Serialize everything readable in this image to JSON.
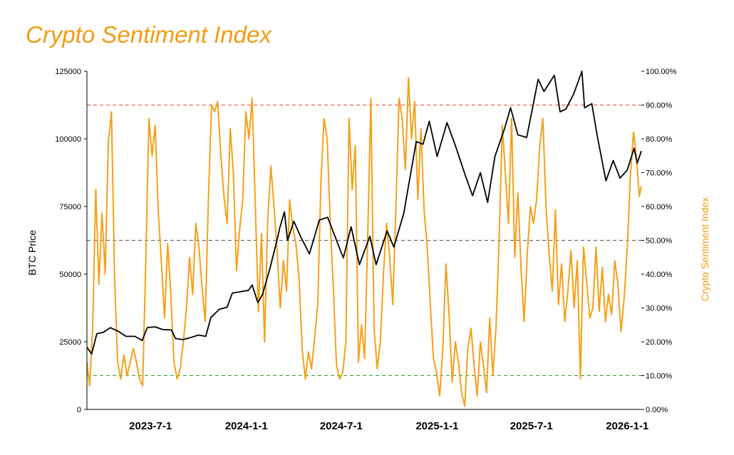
{
  "colors": {
    "title": "#f39c12",
    "price_line": "#000000",
    "sentiment_line": "#f5a018",
    "right_axis_label": "#f39c12",
    "threshold_high": "#e74c3c",
    "threshold_mid": "#555555",
    "threshold_low": "#2ca02c"
  },
  "chart_data": {
    "type": "line",
    "title": "Crypto Sentiment Index",
    "ylabel_left": "BTC Price",
    "ylabel_right": "Crypto Sentiment Index",
    "x_range": [
      "2023-03-01",
      "2026-01-28"
    ],
    "x_ticks": [
      {
        "date": "2023-07-01",
        "label": "2023-7-1"
      },
      {
        "date": "2024-01-01",
        "label": "2024-1-1"
      },
      {
        "date": "2024-07-01",
        "label": "2024-7-1"
      },
      {
        "date": "2025-01-01",
        "label": "2025-1-1"
      },
      {
        "date": "2025-07-01",
        "label": "2025-7-1"
      },
      {
        "date": "2026-01-01",
        "label": "2026-1-1"
      }
    ],
    "ylim_left": [
      0,
      125000
    ],
    "y_ticks_left": [
      "0",
      "25000",
      "50000",
      "75000",
      "100000",
      "125000"
    ],
    "ylim_right": [
      0,
      100
    ],
    "y_ticks_right": [
      "0.00%",
      "10.00%",
      "20.00%",
      "30.00%",
      "40.00%",
      "50.00%",
      "60.00%",
      "70.00%",
      "80.00%",
      "90.00%",
      "100.00%"
    ],
    "thresholds_right_percent": [
      90,
      50,
      10
    ],
    "grid": false,
    "series": [
      {
        "axis": "left",
        "points": [
          [
            "2023-03-01",
            23000
          ],
          [
            "2023-03-10",
            20500
          ],
          [
            "2023-03-20",
            28000
          ],
          [
            "2023-04-01",
            28500
          ],
          [
            "2023-04-15",
            30200
          ],
          [
            "2023-05-01",
            28800
          ],
          [
            "2023-05-15",
            27000
          ],
          [
            "2023-06-01",
            27000
          ],
          [
            "2023-06-15",
            25500
          ],
          [
            "2023-06-25",
            30300
          ],
          [
            "2023-07-10",
            30500
          ],
          [
            "2023-07-25",
            29500
          ],
          [
            "2023-08-10",
            29400
          ],
          [
            "2023-08-18",
            26200
          ],
          [
            "2023-09-01",
            25800
          ],
          [
            "2023-09-15",
            26500
          ],
          [
            "2023-10-01",
            27500
          ],
          [
            "2023-10-15",
            27000
          ],
          [
            "2023-10-25",
            34000
          ],
          [
            "2023-11-10",
            37000
          ],
          [
            "2023-11-25",
            37800
          ],
          [
            "2023-12-05",
            43000
          ],
          [
            "2023-12-20",
            43500
          ],
          [
            "2024-01-05",
            44000
          ],
          [
            "2024-01-12",
            46000
          ],
          [
            "2024-01-23",
            39500
          ],
          [
            "2024-02-01",
            42500
          ],
          [
            "2024-02-15",
            52000
          ],
          [
            "2024-02-28",
            62000
          ],
          [
            "2024-03-05",
            67000
          ],
          [
            "2024-03-14",
            73000
          ],
          [
            "2024-03-20",
            62500
          ],
          [
            "2024-04-01",
            69500
          ],
          [
            "2024-04-15",
            63500
          ],
          [
            "2024-05-01",
            57500
          ],
          [
            "2024-05-20",
            70000
          ],
          [
            "2024-06-05",
            71000
          ],
          [
            "2024-06-25",
            61000
          ],
          [
            "2024-07-05",
            56000
          ],
          [
            "2024-07-20",
            67500
          ],
          [
            "2024-08-05",
            53500
          ],
          [
            "2024-08-25",
            64000
          ],
          [
            "2024-09-06",
            53500
          ],
          [
            "2024-09-27",
            66000
          ],
          [
            "2024-10-10",
            60000
          ],
          [
            "2024-10-29",
            72500
          ],
          [
            "2024-11-12",
            88000
          ],
          [
            "2024-11-22",
            99000
          ],
          [
            "2024-12-05",
            98000
          ],
          [
            "2024-12-17",
            106500
          ],
          [
            "2025-01-01",
            93500
          ],
          [
            "2025-01-20",
            106000
          ],
          [
            "2025-02-05",
            97500
          ],
          [
            "2025-02-25",
            86000
          ],
          [
            "2025-03-10",
            79000
          ],
          [
            "2025-03-25",
            87500
          ],
          [
            "2025-04-08",
            76500
          ],
          [
            "2025-04-22",
            93500
          ],
          [
            "2025-05-10",
            103500
          ],
          [
            "2025-05-22",
            111500
          ],
          [
            "2025-06-05",
            101500
          ],
          [
            "2025-06-22",
            100500
          ],
          [
            "2025-07-14",
            122000
          ],
          [
            "2025-07-25",
            117500
          ],
          [
            "2025-08-14",
            123500
          ],
          [
            "2025-08-25",
            110000
          ],
          [
            "2025-09-05",
            111000
          ],
          [
            "2025-09-20",
            116500
          ],
          [
            "2025-10-06",
            125000
          ],
          [
            "2025-10-11",
            111500
          ],
          [
            "2025-10-25",
            113000
          ],
          [
            "2025-11-04",
            101500
          ],
          [
            "2025-11-21",
            84500
          ],
          [
            "2025-12-05",
            92000
          ],
          [
            "2025-12-18",
            85500
          ],
          [
            "2026-01-01",
            88500
          ],
          [
            "2026-01-14",
            96500
          ],
          [
            "2026-01-20",
            91000
          ],
          [
            "2026-01-28",
            95500
          ]
        ]
      },
      {
        "axis": "right",
        "points": [
          [
            "2023-03-01",
            14
          ],
          [
            "2023-03-06",
            7
          ],
          [
            "2023-03-12",
            24
          ],
          [
            "2023-03-18",
            65
          ],
          [
            "2023-03-24",
            37
          ],
          [
            "2023-03-30",
            58
          ],
          [
            "2023-04-05",
            40
          ],
          [
            "2023-04-11",
            79
          ],
          [
            "2023-04-17",
            88
          ],
          [
            "2023-04-23",
            39
          ],
          [
            "2023-04-29",
            14
          ],
          [
            "2023-05-05",
            9
          ],
          [
            "2023-05-11",
            16
          ],
          [
            "2023-05-17",
            10
          ],
          [
            "2023-05-23",
            14
          ],
          [
            "2023-05-29",
            18
          ],
          [
            "2023-06-04",
            14
          ],
          [
            "2023-06-10",
            9
          ],
          [
            "2023-06-16",
            7
          ],
          [
            "2023-06-22",
            44
          ],
          [
            "2023-06-28",
            86
          ],
          [
            "2023-07-04",
            75
          ],
          [
            "2023-07-10",
            84
          ],
          [
            "2023-07-16",
            58
          ],
          [
            "2023-07-22",
            43
          ],
          [
            "2023-07-28",
            27
          ],
          [
            "2023-08-03",
            49
          ],
          [
            "2023-08-09",
            34
          ],
          [
            "2023-08-15",
            14
          ],
          [
            "2023-08-21",
            9
          ],
          [
            "2023-08-27",
            12
          ],
          [
            "2023-09-02",
            20
          ],
          [
            "2023-09-08",
            30
          ],
          [
            "2023-09-14",
            45
          ],
          [
            "2023-09-20",
            34
          ],
          [
            "2023-09-26",
            55
          ],
          [
            "2023-10-02",
            48
          ],
          [
            "2023-10-08",
            36
          ],
          [
            "2023-10-14",
            26
          ],
          [
            "2023-10-20",
            62
          ],
          [
            "2023-10-26",
            90
          ],
          [
            "2023-11-01",
            88
          ],
          [
            "2023-11-07",
            91
          ],
          [
            "2023-11-13",
            75
          ],
          [
            "2023-11-19",
            63
          ],
          [
            "2023-11-25",
            55
          ],
          [
            "2023-12-01",
            83
          ],
          [
            "2023-12-07",
            70
          ],
          [
            "2023-12-13",
            41
          ],
          [
            "2023-12-19",
            53
          ],
          [
            "2023-12-25",
            62
          ],
          [
            "2023-12-31",
            88
          ],
          [
            "2024-01-06",
            80
          ],
          [
            "2024-01-12",
            92
          ],
          [
            "2024-01-18",
            61
          ],
          [
            "2024-01-24",
            29
          ],
          [
            "2024-01-30",
            52
          ],
          [
            "2024-02-05",
            20
          ],
          [
            "2024-02-11",
            56
          ],
          [
            "2024-02-17",
            72
          ],
          [
            "2024-02-23",
            60
          ],
          [
            "2024-02-29",
            47
          ],
          [
            "2024-03-06",
            30
          ],
          [
            "2024-03-12",
            44
          ],
          [
            "2024-03-18",
            35
          ],
          [
            "2024-03-24",
            62
          ],
          [
            "2024-03-30",
            54
          ],
          [
            "2024-04-05",
            49
          ],
          [
            "2024-04-11",
            39
          ],
          [
            "2024-04-17",
            18
          ],
          [
            "2024-04-23",
            9
          ],
          [
            "2024-04-29",
            17
          ],
          [
            "2024-05-05",
            12
          ],
          [
            "2024-05-11",
            21
          ],
          [
            "2024-05-17",
            31
          ],
          [
            "2024-05-23",
            67
          ],
          [
            "2024-05-29",
            86
          ],
          [
            "2024-06-04",
            80
          ],
          [
            "2024-06-10",
            55
          ],
          [
            "2024-06-16",
            35
          ],
          [
            "2024-06-22",
            13
          ],
          [
            "2024-06-28",
            9
          ],
          [
            "2024-07-04",
            11
          ],
          [
            "2024-07-10",
            20
          ],
          [
            "2024-07-16",
            86
          ],
          [
            "2024-07-22",
            65
          ],
          [
            "2024-07-28",
            78
          ],
          [
            "2024-08-03",
            14
          ],
          [
            "2024-08-09",
            25
          ],
          [
            "2024-08-15",
            15
          ],
          [
            "2024-08-21",
            52
          ],
          [
            "2024-08-27",
            92
          ],
          [
            "2024-09-02",
            24
          ],
          [
            "2024-09-08",
            12
          ],
          [
            "2024-09-14",
            20
          ],
          [
            "2024-09-20",
            40
          ],
          [
            "2024-09-26",
            55
          ],
          [
            "2024-10-02",
            45
          ],
          [
            "2024-10-08",
            31
          ],
          [
            "2024-10-14",
            60
          ],
          [
            "2024-10-20",
            92
          ],
          [
            "2024-10-26",
            86
          ],
          [
            "2024-11-01",
            71
          ],
          [
            "2024-11-07",
            98
          ],
          [
            "2024-11-13",
            80
          ],
          [
            "2024-11-19",
            91
          ],
          [
            "2024-11-25",
            62
          ],
          [
            "2024-12-01",
            83
          ],
          [
            "2024-12-07",
            59
          ],
          [
            "2024-12-13",
            48
          ],
          [
            "2024-12-19",
            31
          ],
          [
            "2024-12-25",
            15
          ],
          [
            "2024-12-31",
            11
          ],
          [
            "2025-01-06",
            4
          ],
          [
            "2025-01-12",
            18
          ],
          [
            "2025-01-18",
            43
          ],
          [
            "2025-01-24",
            28
          ],
          [
            "2025-01-30",
            8
          ],
          [
            "2025-02-05",
            20
          ],
          [
            "2025-02-11",
            14
          ],
          [
            "2025-02-17",
            5
          ],
          [
            "2025-02-23",
            1
          ],
          [
            "2025-03-01",
            18
          ],
          [
            "2025-03-07",
            24
          ],
          [
            "2025-03-13",
            13
          ],
          [
            "2025-03-19",
            4
          ],
          [
            "2025-03-25",
            20
          ],
          [
            "2025-03-31",
            13
          ],
          [
            "2025-04-06",
            5
          ],
          [
            "2025-04-12",
            27
          ],
          [
            "2025-04-18",
            10
          ],
          [
            "2025-04-24",
            24
          ],
          [
            "2025-04-30",
            50
          ],
          [
            "2025-05-06",
            84
          ],
          [
            "2025-05-12",
            70
          ],
          [
            "2025-05-18",
            55
          ],
          [
            "2025-05-24",
            86
          ],
          [
            "2025-05-30",
            45
          ],
          [
            "2025-06-05",
            64
          ],
          [
            "2025-06-11",
            42
          ],
          [
            "2025-06-17",
            26
          ],
          [
            "2025-06-23",
            46
          ],
          [
            "2025-06-29",
            60
          ],
          [
            "2025-07-05",
            55
          ],
          [
            "2025-07-11",
            62
          ],
          [
            "2025-07-17",
            78
          ],
          [
            "2025-07-23",
            86
          ],
          [
            "2025-07-29",
            60
          ],
          [
            "2025-08-04",
            46
          ],
          [
            "2025-08-10",
            35
          ],
          [
            "2025-08-16",
            59
          ],
          [
            "2025-08-22",
            31
          ],
          [
            "2025-08-28",
            43
          ],
          [
            "2025-09-03",
            26
          ],
          [
            "2025-09-09",
            35
          ],
          [
            "2025-09-15",
            47
          ],
          [
            "2025-09-21",
            30
          ],
          [
            "2025-09-27",
            44
          ],
          [
            "2025-10-03",
            9
          ],
          [
            "2025-10-09",
            48
          ],
          [
            "2025-10-15",
            38
          ],
          [
            "2025-10-21",
            27
          ],
          [
            "2025-10-27",
            30
          ],
          [
            "2025-11-02",
            48
          ],
          [
            "2025-11-08",
            29
          ],
          [
            "2025-11-14",
            42
          ],
          [
            "2025-11-20",
            26
          ],
          [
            "2025-11-26",
            34
          ],
          [
            "2025-12-02",
            28
          ],
          [
            "2025-12-08",
            44
          ],
          [
            "2025-12-14",
            37
          ],
          [
            "2025-12-20",
            23
          ],
          [
            "2025-12-26",
            33
          ],
          [
            "2026-01-01",
            48
          ],
          [
            "2026-01-07",
            69
          ],
          [
            "2026-01-13",
            82
          ],
          [
            "2026-01-19",
            74
          ],
          [
            "2026-01-24",
            63
          ],
          [
            "2026-01-28",
            66
          ]
        ]
      }
    ]
  }
}
